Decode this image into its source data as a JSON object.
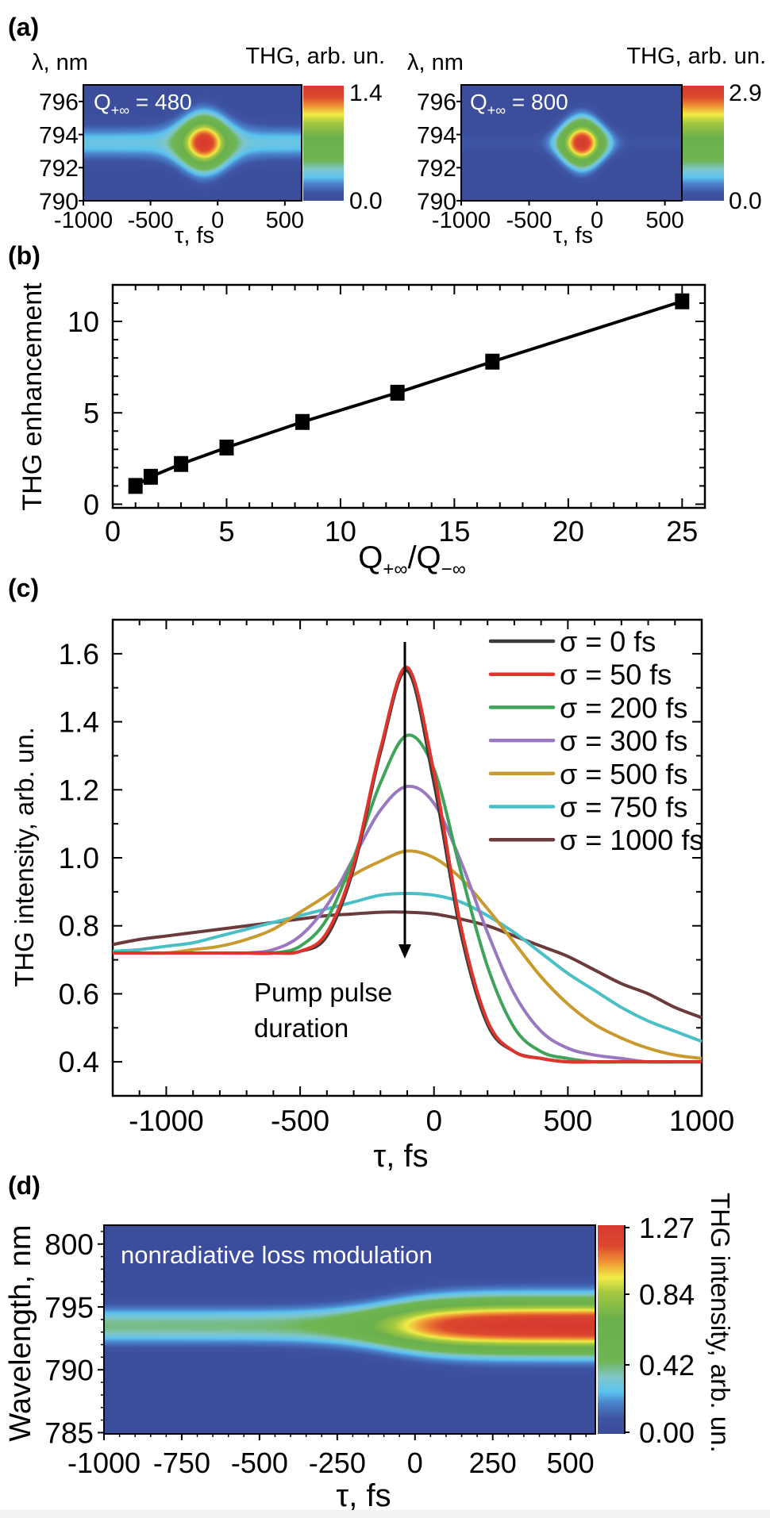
{
  "panel_labels": [
    "(a)",
    "(b)",
    "(c)",
    "(d)"
  ],
  "colormap": [
    "#3b4d9b",
    "#3e55a3",
    "#4c86cf",
    "#5bc3ef",
    "#80c6cc",
    "#6fb553",
    "#6ab04c",
    "#a6c940",
    "#f2ec48",
    "#ef8f34",
    "#dc4a2e",
    "#d63a2f"
  ],
  "chart_data": [
    {
      "id": "a-left",
      "type": "heatmap",
      "ylabel": "λ, nm",
      "xlabel": "τ, fs",
      "colorbar_label": "THG, arb. un.",
      "colorbar_range": [
        0.0,
        1.4
      ],
      "colorbar_ticks": [
        "1.4",
        "0.0"
      ],
      "xlim": [
        -1000,
        625
      ],
      "ylim": [
        790,
        797
      ],
      "xticks": [
        "-1000",
        "-500",
        "0",
        "500"
      ],
      "yticks": [
        "796",
        "794",
        "792",
        "790"
      ],
      "annotation": {
        "base": "Q",
        "sub": "+∞",
        "rest": " = 480"
      },
      "peak_delay_fs": -100,
      "center_wavelength_nm": 793.5,
      "peak_value": 1.4,
      "background_band_value": 0.32
    },
    {
      "id": "a-right",
      "type": "heatmap",
      "ylabel": "λ, nm",
      "xlabel": "τ, fs",
      "colorbar_label": "THG, arb. un.",
      "colorbar_range": [
        0.0,
        2.9
      ],
      "colorbar_ticks": [
        "2.9",
        "0.0"
      ],
      "xlim": [
        -1000,
        625
      ],
      "ylim": [
        790,
        797
      ],
      "xticks": [
        "-1000",
        "-500",
        "0",
        "500"
      ],
      "yticks": [
        "796",
        "794",
        "792",
        "790"
      ],
      "annotation": {
        "base": "Q",
        "sub": "+∞",
        "rest": " = 800"
      },
      "peak_delay_fs": -110,
      "center_wavelength_nm": 793.5,
      "peak_value": 2.9,
      "background_band_value": 0.15
    },
    {
      "id": "b",
      "type": "line",
      "xlabel": {
        "p1": "Q",
        "s1": "+∞",
        "p2": "/Q",
        "s2": "−∞"
      },
      "ylabel": "THG enhancement",
      "x": [
        1,
        1.67,
        3,
        5,
        8.33,
        12.5,
        16.67,
        25
      ],
      "y": [
        1.0,
        1.5,
        2.2,
        3.1,
        4.5,
        6.1,
        7.8,
        11.1
      ],
      "xlim": [
        0,
        26
      ],
      "ylim": [
        -0.2,
        12
      ],
      "xticks": [
        "0",
        "5",
        "10",
        "15",
        "20",
        "25"
      ],
      "yticks": [
        "0",
        "5",
        "10"
      ],
      "marker": "square",
      "color": "#000000"
    },
    {
      "id": "c",
      "type": "line",
      "xlabel": "τ, fs",
      "ylabel": "THG intensity, arb. un.",
      "xlim": [
        -1200,
        1000
      ],
      "ylim": [
        0.3,
        1.7
      ],
      "xticks": [
        "-1000",
        "-500",
        "0",
        "500",
        "1000"
      ],
      "yticks": [
        "1.6",
        "1.4",
        "1.2",
        "1.0",
        "0.8",
        "0.6",
        "0.4"
      ],
      "legend_position": "top-right",
      "annotation": {
        "line1": "Pump pulse",
        "line2": "duration"
      },
      "x": [
        -1200,
        -1100,
        -1000,
        -900,
        -800,
        -700,
        -600,
        -500,
        -400,
        -300,
        -200,
        -100,
        0,
        100,
        200,
        300,
        400,
        500,
        600,
        700,
        800,
        900,
        1000
      ],
      "series": [
        {
          "name": "σ = 0 fs",
          "color": "#3a3a3a",
          "values": [
            0.72,
            0.72,
            0.72,
            0.72,
            0.72,
            0.72,
            0.72,
            0.725,
            0.77,
            0.97,
            1.31,
            1.55,
            1.22,
            0.78,
            0.51,
            0.43,
            0.41,
            0.4,
            0.4,
            0.4,
            0.4,
            0.4,
            0.4
          ]
        },
        {
          "name": "σ = 50 fs",
          "color": "#e0342c",
          "values": [
            0.72,
            0.72,
            0.72,
            0.72,
            0.72,
            0.72,
            0.72,
            0.725,
            0.78,
            0.98,
            1.32,
            1.56,
            1.25,
            0.8,
            0.52,
            0.43,
            0.41,
            0.4,
            0.4,
            0.4,
            0.4,
            0.4,
            0.4
          ]
        },
        {
          "name": "σ = 200 fs",
          "color": "#3fa45a",
          "values": [
            0.72,
            0.72,
            0.72,
            0.72,
            0.72,
            0.72,
            0.72,
            0.74,
            0.82,
            1.0,
            1.22,
            1.36,
            1.26,
            0.96,
            0.68,
            0.5,
            0.43,
            0.41,
            0.4,
            0.4,
            0.4,
            0.4,
            0.4
          ]
        },
        {
          "name": "σ = 300 fs",
          "color": "#9a78c0",
          "values": [
            0.72,
            0.72,
            0.72,
            0.72,
            0.72,
            0.72,
            0.73,
            0.77,
            0.86,
            1.0,
            1.14,
            1.21,
            1.16,
            0.99,
            0.78,
            0.6,
            0.49,
            0.44,
            0.42,
            0.41,
            0.4,
            0.4,
            0.4
          ]
        },
        {
          "name": "σ = 500 fs",
          "color": "#c99a2e",
          "values": [
            0.72,
            0.72,
            0.72,
            0.73,
            0.74,
            0.76,
            0.79,
            0.84,
            0.89,
            0.95,
            0.99,
            1.02,
            1.0,
            0.94,
            0.85,
            0.75,
            0.65,
            0.57,
            0.51,
            0.47,
            0.44,
            0.42,
            0.41
          ]
        },
        {
          "name": "σ = 750 fs",
          "color": "#4bbfc6",
          "values": [
            0.725,
            0.73,
            0.74,
            0.75,
            0.77,
            0.79,
            0.81,
            0.83,
            0.85,
            0.87,
            0.89,
            0.895,
            0.89,
            0.87,
            0.83,
            0.78,
            0.72,
            0.66,
            0.61,
            0.56,
            0.52,
            0.49,
            0.46
          ]
        },
        {
          "name": "σ = 1000 fs",
          "color": "#6b3a3a",
          "values": [
            0.745,
            0.76,
            0.77,
            0.78,
            0.79,
            0.8,
            0.81,
            0.82,
            0.83,
            0.835,
            0.84,
            0.84,
            0.835,
            0.82,
            0.8,
            0.77,
            0.74,
            0.71,
            0.67,
            0.63,
            0.6,
            0.56,
            0.53
          ]
        }
      ]
    },
    {
      "id": "d",
      "type": "heatmap",
      "xlabel": "τ, fs",
      "ylabel": "Wavelength, nm",
      "colorbar_label": "THG intensity, arb. un.",
      "colorbar_range": [
        0.0,
        1.27
      ],
      "colorbar_ticks": [
        "1.27",
        "0.84",
        "0.42",
        "0.00"
      ],
      "xlim": [
        -1000,
        580
      ],
      "ylim": [
        784.9,
        801.5
      ],
      "xticks": [
        "-1000",
        "-750",
        "-500",
        "-250",
        "0",
        "250",
        "500"
      ],
      "yticks": [
        "800",
        "795",
        "790",
        "785"
      ],
      "annotation": "nonradiative loss modulation",
      "center_wavelength_nm": 793.5,
      "value_before": 0.4,
      "value_after": 1.27,
      "transition_delay_fs": -80
    }
  ]
}
